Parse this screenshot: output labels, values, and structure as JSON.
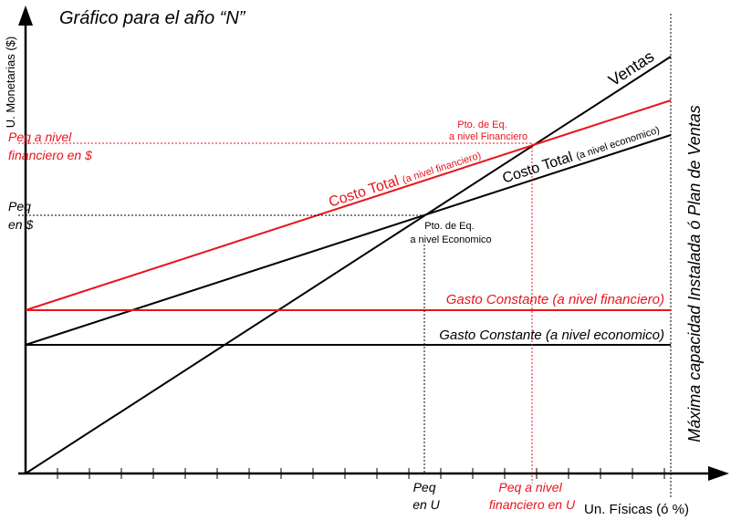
{
  "title": "Gráfico para el año “N”",
  "axes": {
    "y_label": "U. Monetarias ($)",
    "x_label": "Un. Físicas (ó %)",
    "capacity_label": "Máxima capacidad Instalada ó Plan de Ventas"
  },
  "lines": {
    "ventas": "Ventas",
    "costo_total_financiero": {
      "main": "Costo Total",
      "detail": "(a nivel financiero)"
    },
    "costo_total_economico": {
      "main": "Costo Total",
      "detail": "(a nivel economico)"
    },
    "gasto_constante_financiero": "Gasto Constante (a nivel financiero)",
    "gasto_constante_economico": "Gasto Constante (a nivel economico)"
  },
  "points": {
    "financiero": [
      "Pto. de Eq.",
      "a nivel Financiero"
    ],
    "economico": [
      "Pto. de Eq.",
      "a nivel Economico"
    ]
  },
  "labels": {
    "peq_financiero_pesos": [
      "Peq a nivel",
      "financiero en $"
    ],
    "peq_pesos": [
      "Peq",
      "en $"
    ],
    "peq_unidades": [
      "Peq",
      "en U"
    ],
    "peq_financiero_unidades": [
      "Peq a nivel",
      "financiero en U"
    ]
  }
}
